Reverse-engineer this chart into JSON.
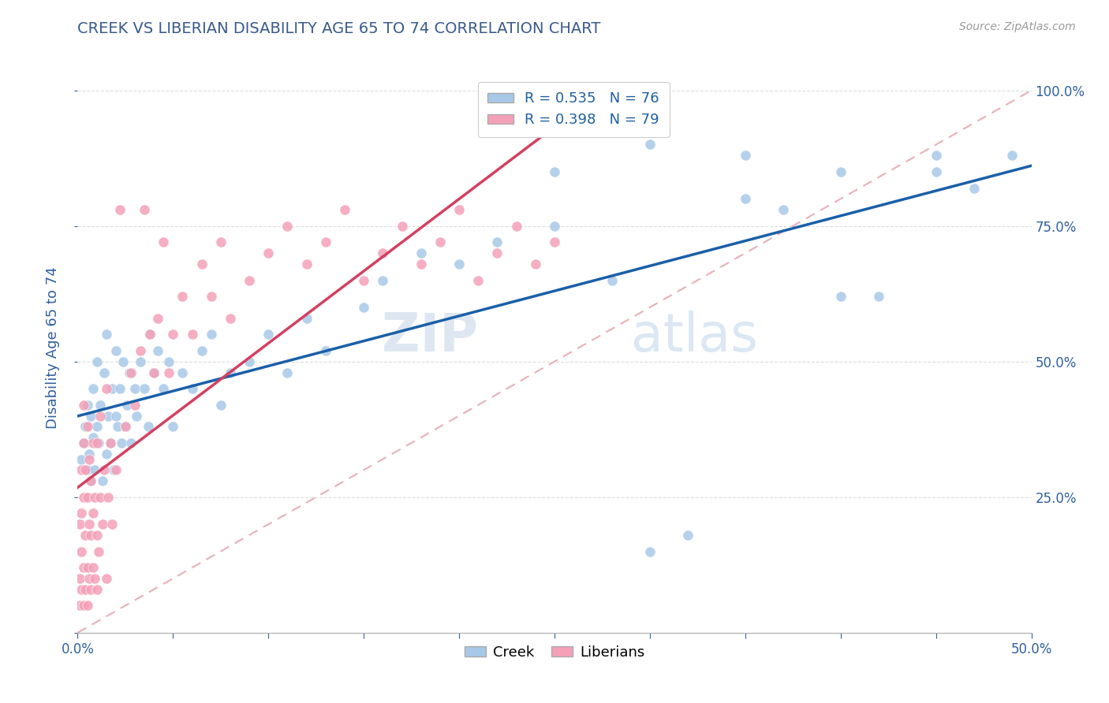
{
  "title": "CREEK VS LIBERIAN DISABILITY AGE 65 TO 74 CORRELATION CHART",
  "ylabel": "Disability Age 65 to 74",
  "source_text": "Source: ZipAtlas.com",
  "xlim": [
    0.0,
    0.5
  ],
  "ylim": [
    0.0,
    1.05
  ],
  "creek_color": "#a8c8e8",
  "liberian_color": "#f4a0b8",
  "creek_line_color": "#1a5fa8",
  "liberian_line_color": "#d44060",
  "ref_line_color": "#e8b0b8",
  "R_creek": 0.535,
  "N_creek": 76,
  "R_liberian": 0.398,
  "N_liberian": 79,
  "legend_color": "#2060a0",
  "title_color": "#3a5a8c",
  "axis_label_color": "#3060a0",
  "tick_color": "#3060a0",
  "watermark_zip": "ZIP",
  "watermark_atlas": "atlas",
  "background_color": "#ffffff",
  "creek_x": [
    0.002,
    0.003,
    0.004,
    0.005,
    0.005,
    0.006,
    0.007,
    0.007,
    0.008,
    0.008,
    0.009,
    0.01,
    0.01,
    0.011,
    0.012,
    0.013,
    0.014,
    0.015,
    0.015,
    0.016,
    0.017,
    0.018,
    0.019,
    0.02,
    0.02,
    0.021,
    0.022,
    0.023,
    0.024,
    0.025,
    0.026,
    0.027,
    0.028,
    0.03,
    0.031,
    0.033,
    0.035,
    0.037,
    0.038,
    0.04,
    0.042,
    0.045,
    0.048,
    0.05,
    0.055,
    0.06,
    0.065,
    0.07,
    0.075,
    0.08,
    0.09,
    0.1,
    0.11,
    0.12,
    0.13,
    0.15,
    0.16,
    0.18,
    0.2,
    0.22,
    0.25,
    0.28,
    0.3,
    0.32,
    0.35,
    0.37,
    0.4,
    0.42,
    0.45,
    0.47,
    0.49,
    0.25,
    0.3,
    0.35,
    0.4,
    0.45
  ],
  "creek_y": [
    0.32,
    0.35,
    0.38,
    0.3,
    0.42,
    0.33,
    0.28,
    0.4,
    0.36,
    0.45,
    0.3,
    0.38,
    0.5,
    0.35,
    0.42,
    0.28,
    0.48,
    0.33,
    0.55,
    0.4,
    0.35,
    0.45,
    0.3,
    0.4,
    0.52,
    0.38,
    0.45,
    0.35,
    0.5,
    0.38,
    0.42,
    0.48,
    0.35,
    0.45,
    0.4,
    0.5,
    0.45,
    0.38,
    0.55,
    0.48,
    0.52,
    0.45,
    0.5,
    0.38,
    0.48,
    0.45,
    0.52,
    0.55,
    0.42,
    0.48,
    0.5,
    0.55,
    0.48,
    0.58,
    0.52,
    0.6,
    0.65,
    0.7,
    0.68,
    0.72,
    0.75,
    0.65,
    0.15,
    0.18,
    0.8,
    0.78,
    0.62,
    0.62,
    0.85,
    0.82,
    0.88,
    0.85,
    0.9,
    0.88,
    0.85,
    0.88
  ],
  "liberian_x": [
    0.001,
    0.001,
    0.001,
    0.002,
    0.002,
    0.002,
    0.002,
    0.003,
    0.003,
    0.003,
    0.003,
    0.003,
    0.004,
    0.004,
    0.004,
    0.005,
    0.005,
    0.005,
    0.005,
    0.006,
    0.006,
    0.006,
    0.007,
    0.007,
    0.007,
    0.008,
    0.008,
    0.008,
    0.009,
    0.009,
    0.01,
    0.01,
    0.01,
    0.011,
    0.012,
    0.012,
    0.013,
    0.014,
    0.015,
    0.015,
    0.016,
    0.017,
    0.018,
    0.02,
    0.022,
    0.025,
    0.028,
    0.03,
    0.033,
    0.035,
    0.038,
    0.04,
    0.042,
    0.045,
    0.048,
    0.05,
    0.055,
    0.06,
    0.065,
    0.07,
    0.075,
    0.08,
    0.09,
    0.1,
    0.11,
    0.12,
    0.13,
    0.14,
    0.15,
    0.16,
    0.17,
    0.18,
    0.19,
    0.2,
    0.21,
    0.22,
    0.23,
    0.24,
    0.25
  ],
  "liberian_y": [
    0.05,
    0.1,
    0.2,
    0.08,
    0.15,
    0.22,
    0.3,
    0.05,
    0.12,
    0.25,
    0.35,
    0.42,
    0.08,
    0.18,
    0.3,
    0.05,
    0.12,
    0.25,
    0.38,
    0.1,
    0.2,
    0.32,
    0.08,
    0.18,
    0.28,
    0.12,
    0.22,
    0.35,
    0.1,
    0.25,
    0.08,
    0.18,
    0.35,
    0.15,
    0.25,
    0.4,
    0.2,
    0.3,
    0.1,
    0.45,
    0.25,
    0.35,
    0.2,
    0.3,
    0.78,
    0.38,
    0.48,
    0.42,
    0.52,
    0.78,
    0.55,
    0.48,
    0.58,
    0.72,
    0.48,
    0.55,
    0.62,
    0.55,
    0.68,
    0.62,
    0.72,
    0.58,
    0.65,
    0.7,
    0.75,
    0.68,
    0.72,
    0.78,
    0.65,
    0.7,
    0.75,
    0.68,
    0.72,
    0.78,
    0.65,
    0.7,
    0.75,
    0.68,
    0.72
  ]
}
